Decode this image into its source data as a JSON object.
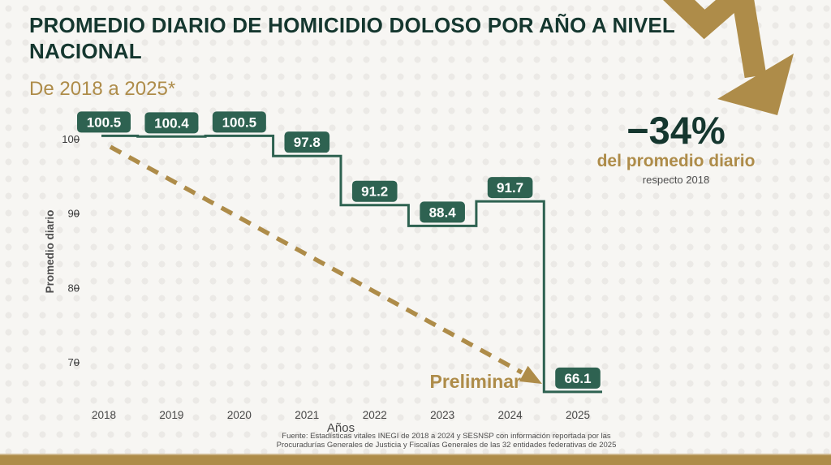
{
  "page": {
    "title": "PROMEDIO DIARIO DE HOMICIDIO DOLOSO POR AÑO A NIVEL NACIONAL",
    "subtitle": "De 2018 a 2025*"
  },
  "highlight": {
    "value": "−34%",
    "label": "del promedio diario",
    "sublabel": "respecto 2018"
  },
  "annotation": {
    "preliminar": "Preliminar"
  },
  "icons": {
    "trend_arrow": "arrow-down-right-zigzag",
    "dashed_trend_arrow": "dashed-arrow-down-right"
  },
  "footer": {
    "source_line1": "Fuente: Estadísticas vitales INEGI de 2018 a 2024 y SESNSP con información reportada por las",
    "source_line2": "Procuradurías Generales de Justicia y Fiscalías Generales de las 32 entidades federativas de 2025"
  },
  "colors": {
    "dark_teal": "#15372f",
    "line_green": "#2e6251",
    "gold": "#ae8c49",
    "gray_text": "#4f4f4f"
  },
  "chart_data": {
    "type": "line",
    "subtype": "step",
    "title": "Promedio diario de homicidio doloso por año a nivel nacional, 2018 a 2025",
    "x": [
      2018,
      2019,
      2020,
      2021,
      2022,
      2023,
      2024,
      2025
    ],
    "values": [
      100.5,
      100.4,
      100.5,
      97.8,
      91.2,
      88.4,
      91.7,
      66.1
    ],
    "xlabel": "Años",
    "ylabel": "Promedio diario",
    "yticks": [
      70,
      80,
      90,
      100
    ],
    "ylim": [
      63,
      103
    ],
    "grid": false,
    "legend": "none",
    "notes": "2025 value is preliminary; −34% vs 2018"
  }
}
